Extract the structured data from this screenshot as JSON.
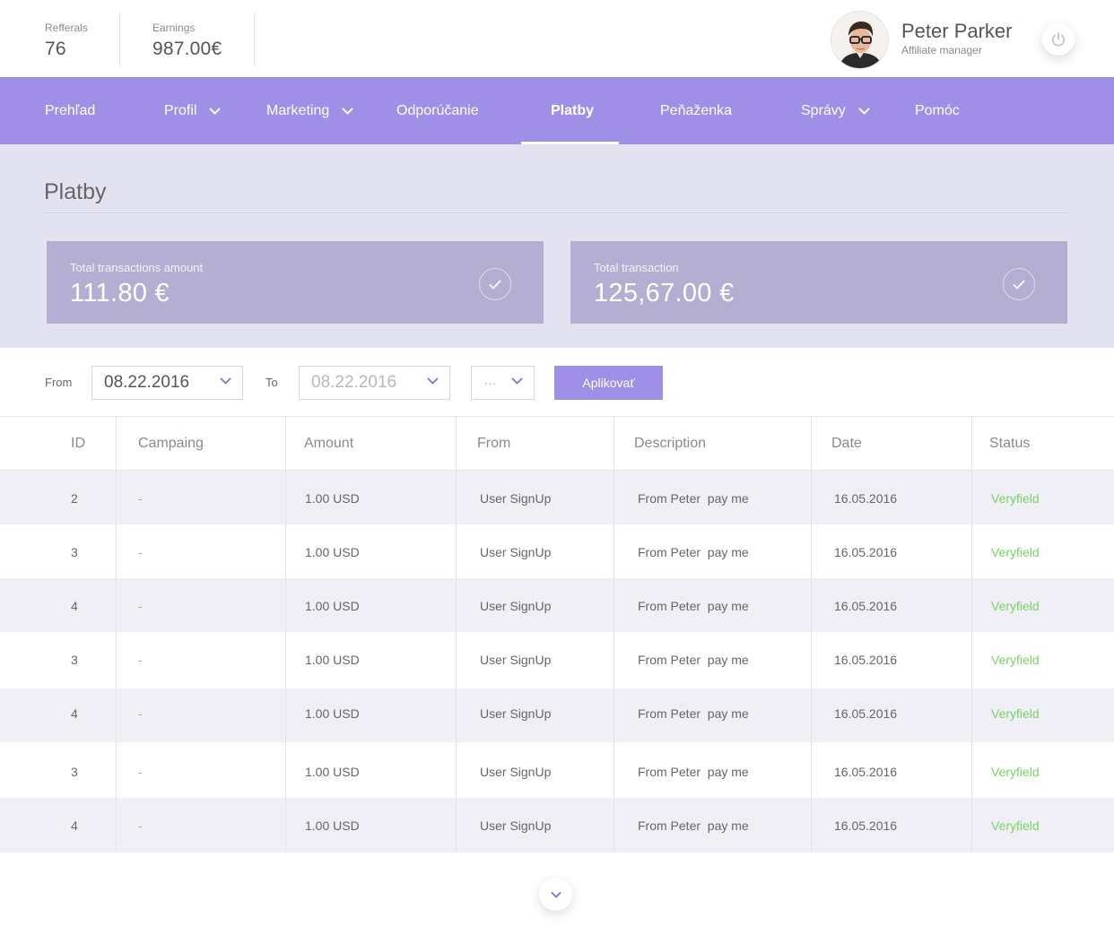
{
  "header": {
    "referrals": {
      "label": "Refferals",
      "value": "76"
    },
    "earnings": {
      "label": "Earnings",
      "value": "987.00€"
    },
    "user": {
      "name": "Peter Parker",
      "role": "Affiliate manager",
      "avatar_icon": "user-avatar"
    },
    "power_icon": "power-icon"
  },
  "nav": {
    "items": [
      {
        "label": "Prehľad"
      },
      {
        "label": "Profil",
        "dropdown": true
      },
      {
        "label": "Marketing",
        "dropdown": true
      },
      {
        "label": "Odporúčanie"
      },
      {
        "label": "Platby",
        "active": true
      },
      {
        "label": "Peňaženka"
      },
      {
        "label": "Správy",
        "dropdown": true
      },
      {
        "label": "Pomóc"
      }
    ]
  },
  "page": {
    "title": "Platby",
    "cards": [
      {
        "label": "Total transactions amount",
        "value": "111.80 €"
      },
      {
        "label": "Total transaction",
        "value": "125,67.00 €"
      }
    ]
  },
  "filters": {
    "from_label": "From",
    "from_value": "08.22.2016",
    "to_label": "To",
    "to_value": "08.22.2016",
    "extra_value": "···",
    "apply_label": "Aplikovať"
  },
  "table": {
    "columns": [
      "ID",
      "Campaing",
      "Amount",
      "From",
      "Description",
      "Date",
      "Status"
    ],
    "rows": [
      [
        "2",
        "-",
        "1.00 USD",
        "User SignUp",
        "From Peter  pay me",
        "16.05.2016",
        "Veryfield"
      ],
      [
        "3",
        "-",
        "1.00 USD",
        "User SignUp",
        "From Peter  pay me",
        "16.05.2016",
        "Veryfield"
      ],
      [
        "4",
        "-",
        "1.00 USD",
        "User SignUp",
        "From Peter  pay me",
        "16.05.2016",
        "Veryfield"
      ],
      [
        "3",
        "-",
        "1.00 USD",
        "User SignUp",
        "From Peter  pay me",
        "16.05.2016",
        "Veryfield"
      ],
      [
        "4",
        "-",
        "1.00 USD",
        "User SignUp",
        "From Peter  pay me",
        "16.05.2016",
        "Veryfield"
      ],
      [
        "3",
        "-",
        "1.00 USD",
        "User SignUp",
        "From Peter  pay me",
        "16.05.2016",
        "Veryfield"
      ],
      [
        "4",
        "-",
        "1.00 USD",
        "User SignUp",
        "From Peter  pay me",
        "16.05.2016",
        "Veryfield"
      ]
    ]
  },
  "colors": {
    "accent": "#a08fe6",
    "summary_bg": "#e3e2f1",
    "card_bg": "#b4afd2",
    "status_ok": "#78d264",
    "row_alt": "#f0eff6"
  },
  "load_more_icon": "chevron-down-icon"
}
